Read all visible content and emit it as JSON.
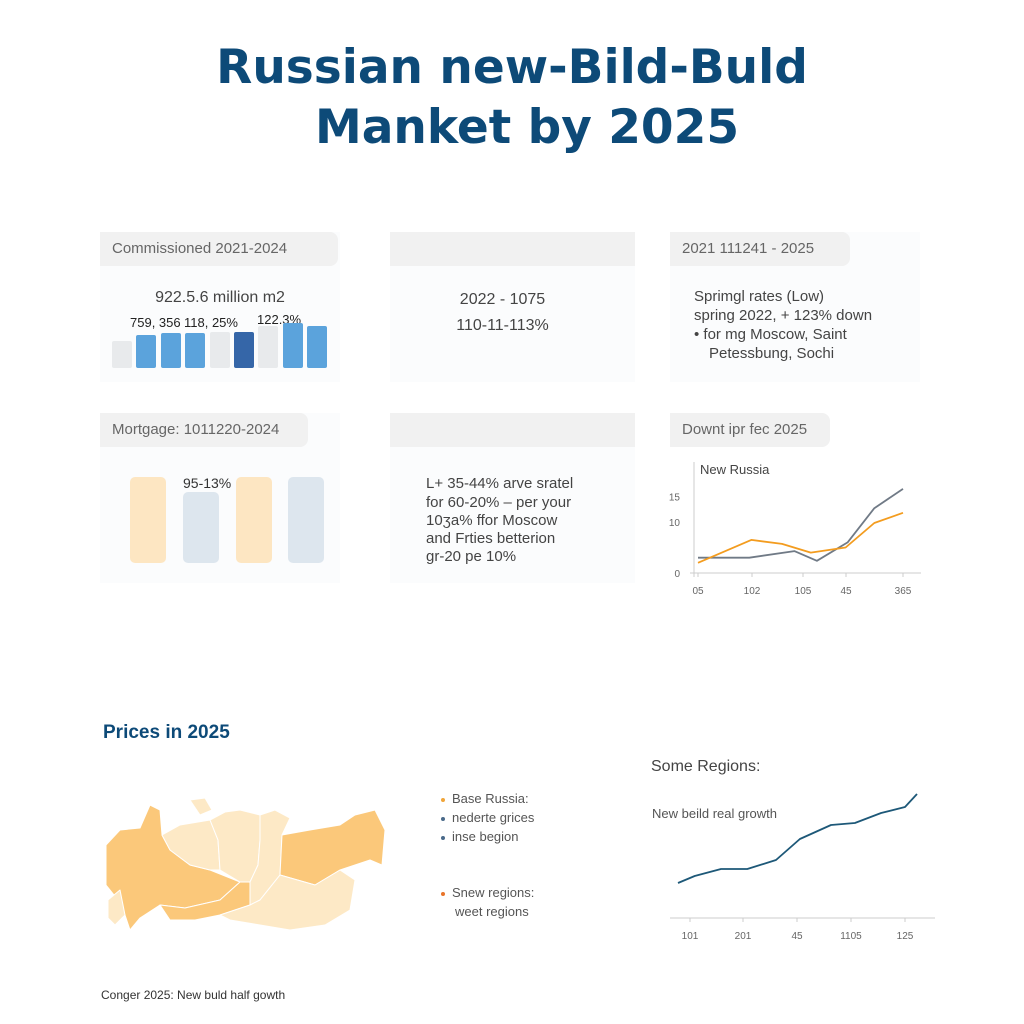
{
  "header": {
    "title_line1": "Russian new-Bild-Buld",
    "title_line2": "Manket by 2025"
  },
  "cards": {
    "commissioned": {
      "label": "Commissioned 2021-2024",
      "value": "922.5.6 million m2",
      "bar_labels": [
        "759, 356",
        "118, 25%",
        "122.3%"
      ],
      "bars": [
        {
          "value": 27,
          "color": "#e8eaec"
        },
        {
          "value": 33,
          "color": "#5ba3dc"
        },
        {
          "value": 35,
          "color": "#5ba3dc"
        },
        {
          "value": 35,
          "color": "#5ba3dc"
        },
        {
          "value": 36,
          "color": "#e8eaec"
        },
        {
          "value": 36,
          "color": "#3566a8"
        },
        {
          "value": 42,
          "color": "#e8eaec"
        },
        {
          "value": 45,
          "color": "#5ba3dc"
        },
        {
          "value": 42,
          "color": "#5ba3dc"
        }
      ]
    },
    "middle_top": {
      "line1": "2022 - 1075",
      "line2": "110-11-113%"
    },
    "rates": {
      "label": "2021 111241 - 2025",
      "lines": [
        "Sprimgl rates (Low)",
        "spring 2022, + 123% down",
        "• for mg Moscow, Saint",
        "Petessbung, Sochi"
      ]
    },
    "mortgage": {
      "label": "Mortgage: 1011220-2024",
      "bar_label": "95-13%",
      "bars": [
        {
          "value": 86,
          "color": "#fde6c2"
        },
        {
          "value": 71,
          "color": "#dde6ee"
        },
        {
          "value": 86,
          "color": "#fde6c2"
        },
        {
          "value": 86,
          "color": "#dde6ee"
        }
      ]
    },
    "middle_bottom": {
      "lines": [
        "L+ 35-44% arve sratel",
        "for 60-20% – per your",
        "10ʒa% ffor Moscow",
        "and Frties betterion",
        "gr-20 pe 10%"
      ]
    },
    "forecast": {
      "label": "Downt ipr fec 2025"
    }
  },
  "chart_data": [
    {
      "type": "line",
      "title": "New Russia",
      "x_tick_labels": [
        "05",
        "102",
        "105",
        "45",
        "365"
      ],
      "y_tick_labels": [
        "15",
        "10",
        "0"
      ],
      "ylim": [
        0,
        17
      ],
      "series": [
        {
          "color": "#707a86",
          "x": [
            0,
            0.25,
            0.47,
            0.58,
            0.73,
            0.86,
            1.0
          ],
          "values": [
            3,
            3,
            4.3,
            2.4,
            6,
            12.7,
            16.5
          ]
        },
        {
          "color": "#f39c1f",
          "x": [
            0,
            0.26,
            0.41,
            0.55,
            0.72,
            0.86,
            1.0
          ],
          "values": [
            2,
            6.5,
            5.7,
            4,
            5,
            9.8,
            11.8
          ]
        }
      ]
    },
    {
      "type": "line",
      "title": "Some Regions:",
      "subtitle": "New beild real growth",
      "x_tick_labels": [
        "101",
        "201",
        "45",
        "1105",
        "125"
      ],
      "ylim": [
        0,
        130
      ],
      "series": [
        {
          "color": "#1d5878",
          "x": [
            0,
            0.07,
            0.18,
            0.29,
            0.41,
            0.51,
            0.64,
            0.74,
            0.85,
            0.95,
            1.0
          ],
          "values": [
            35,
            42,
            49,
            49,
            58,
            79,
            93,
            95,
            105,
            111,
            124
          ]
        }
      ]
    }
  ],
  "prices": {
    "title": "Prices in 2025",
    "legend": [
      {
        "text": "Base Russia:",
        "color": "#f0a53a"
      },
      {
        "text": "nederte grices",
        "color": "#4a6a8a"
      },
      {
        "text": "inse begion",
        "color": "#4a6a8a"
      },
      {
        "text": "Snew regions:",
        "color": "#e8742a"
      },
      {
        "text": "weet regions",
        "color": ""
      }
    ],
    "map_colors": {
      "high": "#fbc87a",
      "low": "#fde9c6"
    },
    "caption": "Conger 2025: New buld half gowth"
  }
}
